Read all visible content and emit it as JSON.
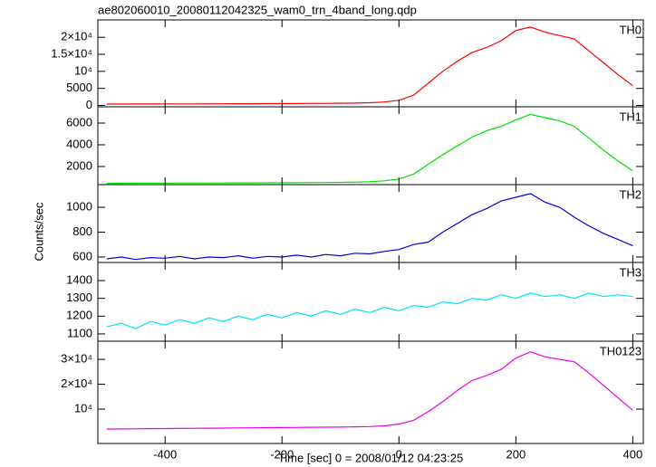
{
  "title": "ae802060010_20080112042325_wam0_trn_4band_long.qdp",
  "ylabel": "Counts/sec",
  "xlabel": "Time [sec] 0 = 2008/01/12 04:23:25",
  "chart_data": [
    {
      "type": "line",
      "xlim": [
        -515,
        418
      ],
      "ylim": [
        -400,
        25100
      ],
      "yticks": [
        0,
        5000,
        {
          "value": 10000,
          "label": "10⁴"
        },
        {
          "value": 15000,
          "label": "1.5×10⁴"
        },
        {
          "value": 20000,
          "label": "2×10⁴"
        }
      ],
      "x": [
        -500,
        -475,
        -450,
        -425,
        -400,
        -375,
        -350,
        -325,
        -300,
        -275,
        -250,
        -225,
        -200,
        -175,
        -150,
        -125,
        -100,
        -75,
        -50,
        -25,
        0,
        25,
        50,
        75,
        100,
        125,
        150,
        175,
        200,
        225,
        250,
        275,
        300,
        325,
        350,
        375,
        400
      ],
      "series": [
        {
          "name": "TH0",
          "color": "#ff0000",
          "values": [
            400,
            410,
            420,
            430,
            440,
            450,
            460,
            470,
            480,
            500,
            510,
            520,
            540,
            560,
            580,
            600,
            650,
            700,
            800,
            1000,
            1500,
            3000,
            6500,
            10000,
            13000,
            15500,
            17000,
            19000,
            22000,
            23000,
            21500,
            20500,
            19500,
            16000,
            12500,
            9000,
            5800
          ]
        }
      ]
    },
    {
      "type": "line",
      "xlim": [
        -515,
        418
      ],
      "ylim": [
        330,
        7500
      ],
      "yticks": [
        2000,
        4000,
        6000
      ],
      "x": [
        -500,
        -475,
        -450,
        -425,
        -400,
        -375,
        -350,
        -325,
        -300,
        -275,
        -250,
        -225,
        -200,
        -175,
        -150,
        -125,
        -100,
        -75,
        -50,
        -25,
        0,
        25,
        50,
        75,
        100,
        125,
        150,
        175,
        200,
        225,
        250,
        275,
        300,
        325,
        350,
        375,
        400
      ],
      "series": [
        {
          "name": "TH1",
          "color": "#00e000",
          "values": [
            450,
            455,
            460,
            462,
            465,
            468,
            470,
            475,
            480,
            485,
            490,
            495,
            500,
            505,
            510,
            520,
            540,
            560,
            600,
            680,
            850,
            1300,
            2200,
            3100,
            3900,
            4700,
            5300,
            5700,
            6300,
            6800,
            6500,
            6200,
            5700,
            4600,
            3500,
            2500,
            1600
          ]
        }
      ]
    },
    {
      "type": "line",
      "xlim": [
        -515,
        418
      ],
      "ylim": [
        556,
        1182
      ],
      "yticks": [
        600,
        800,
        1000
      ],
      "x": [
        -500,
        -475,
        -450,
        -425,
        -400,
        -375,
        -350,
        -325,
        -300,
        -275,
        -250,
        -225,
        -200,
        -175,
        -150,
        -125,
        -100,
        -75,
        -50,
        -25,
        0,
        25,
        50,
        75,
        100,
        125,
        150,
        175,
        200,
        225,
        250,
        275,
        300,
        325,
        350,
        375,
        400
      ],
      "series": [
        {
          "name": "TH2",
          "color": "#0000e0",
          "values": [
            585,
            600,
            580,
            595,
            590,
            605,
            585,
            600,
            595,
            610,
            590,
            605,
            600,
            615,
            600,
            620,
            610,
            630,
            625,
            645,
            660,
            700,
            720,
            800,
            870,
            940,
            990,
            1050,
            1080,
            1110,
            1040,
            1000,
            920,
            850,
            790,
            740,
            690
          ]
        }
      ]
    },
    {
      "type": "line",
      "xlim": [
        -515,
        418
      ],
      "ylim": [
        1059,
        1502
      ],
      "yticks": [
        1100,
        1200,
        1300,
        1400
      ],
      "x": [
        -500,
        -475,
        -450,
        -425,
        -400,
        -375,
        -350,
        -325,
        -300,
        -275,
        -250,
        -225,
        -200,
        -175,
        -150,
        -125,
        -100,
        -75,
        -50,
        -25,
        0,
        25,
        50,
        75,
        100,
        125,
        150,
        175,
        200,
        225,
        250,
        275,
        300,
        325,
        350,
        375,
        400
      ],
      "series": [
        {
          "name": "TH3",
          "color": "#00e5ee",
          "values": [
            1140,
            1160,
            1130,
            1170,
            1150,
            1180,
            1160,
            1190,
            1170,
            1200,
            1180,
            1210,
            1190,
            1220,
            1200,
            1230,
            1210,
            1240,
            1220,
            1250,
            1230,
            1260,
            1250,
            1280,
            1270,
            1300,
            1290,
            1320,
            1300,
            1330,
            1310,
            1320,
            1300,
            1330,
            1310,
            1320,
            1310
          ]
        }
      ]
    },
    {
      "type": "line",
      "xlim": [
        -515,
        418
      ],
      "ylim": [
        -3800,
        37300
      ],
      "yticks": [
        {
          "value": 10000,
          "label": "10⁴"
        },
        {
          "value": 20000,
          "label": "2×10⁴"
        },
        {
          "value": 30000,
          "label": "3×10⁴"
        }
      ],
      "xticks": [
        -400,
        -200,
        0,
        200,
        400
      ],
      "x": [
        -500,
        -475,
        -450,
        -425,
        -400,
        -375,
        -350,
        -325,
        -300,
        -275,
        -250,
        -225,
        -200,
        -175,
        -150,
        -125,
        -100,
        -75,
        -50,
        -25,
        0,
        25,
        50,
        75,
        100,
        125,
        150,
        175,
        200,
        225,
        250,
        275,
        300,
        325,
        350,
        375,
        400
      ],
      "series": [
        {
          "name": "TH0123",
          "color": "#ee00ee",
          "values": [
            2000,
            2050,
            2100,
            2150,
            2200,
            2250,
            2300,
            2350,
            2400,
            2450,
            2500,
            2550,
            2600,
            2650,
            2700,
            2750,
            2800,
            2900,
            3000,
            3300,
            4000,
            5500,
            9000,
            13000,
            17500,
            21500,
            23500,
            26000,
            30500,
            33000,
            31000,
            30000,
            29000,
            24500,
            19500,
            14500,
            9500
          ]
        }
      ]
    }
  ]
}
